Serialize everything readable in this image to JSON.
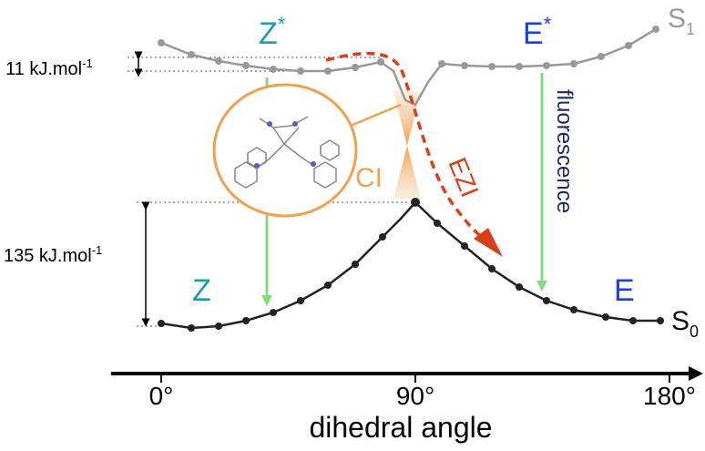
{
  "states": {
    "z_star": {
      "base": "Z",
      "sup": "*"
    },
    "e_star": {
      "base": "E",
      "sup": "*"
    },
    "z": "Z",
    "e": "E",
    "s1": {
      "base": "S",
      "sub": "1"
    },
    "s0": {
      "base": "S",
      "sub": "0"
    },
    "ci": "CI",
    "ezi": "EZI",
    "fluorescence": "fluorescence"
  },
  "barriers": {
    "small": {
      "base": "11 kJ.mol",
      "sup": "-1"
    },
    "large": {
      "base": "135 kJ.mol",
      "sup": "-1"
    }
  },
  "axis": {
    "ticks": [
      "0°",
      "90°",
      "180°"
    ],
    "label": "dihedral angle"
  }
}
